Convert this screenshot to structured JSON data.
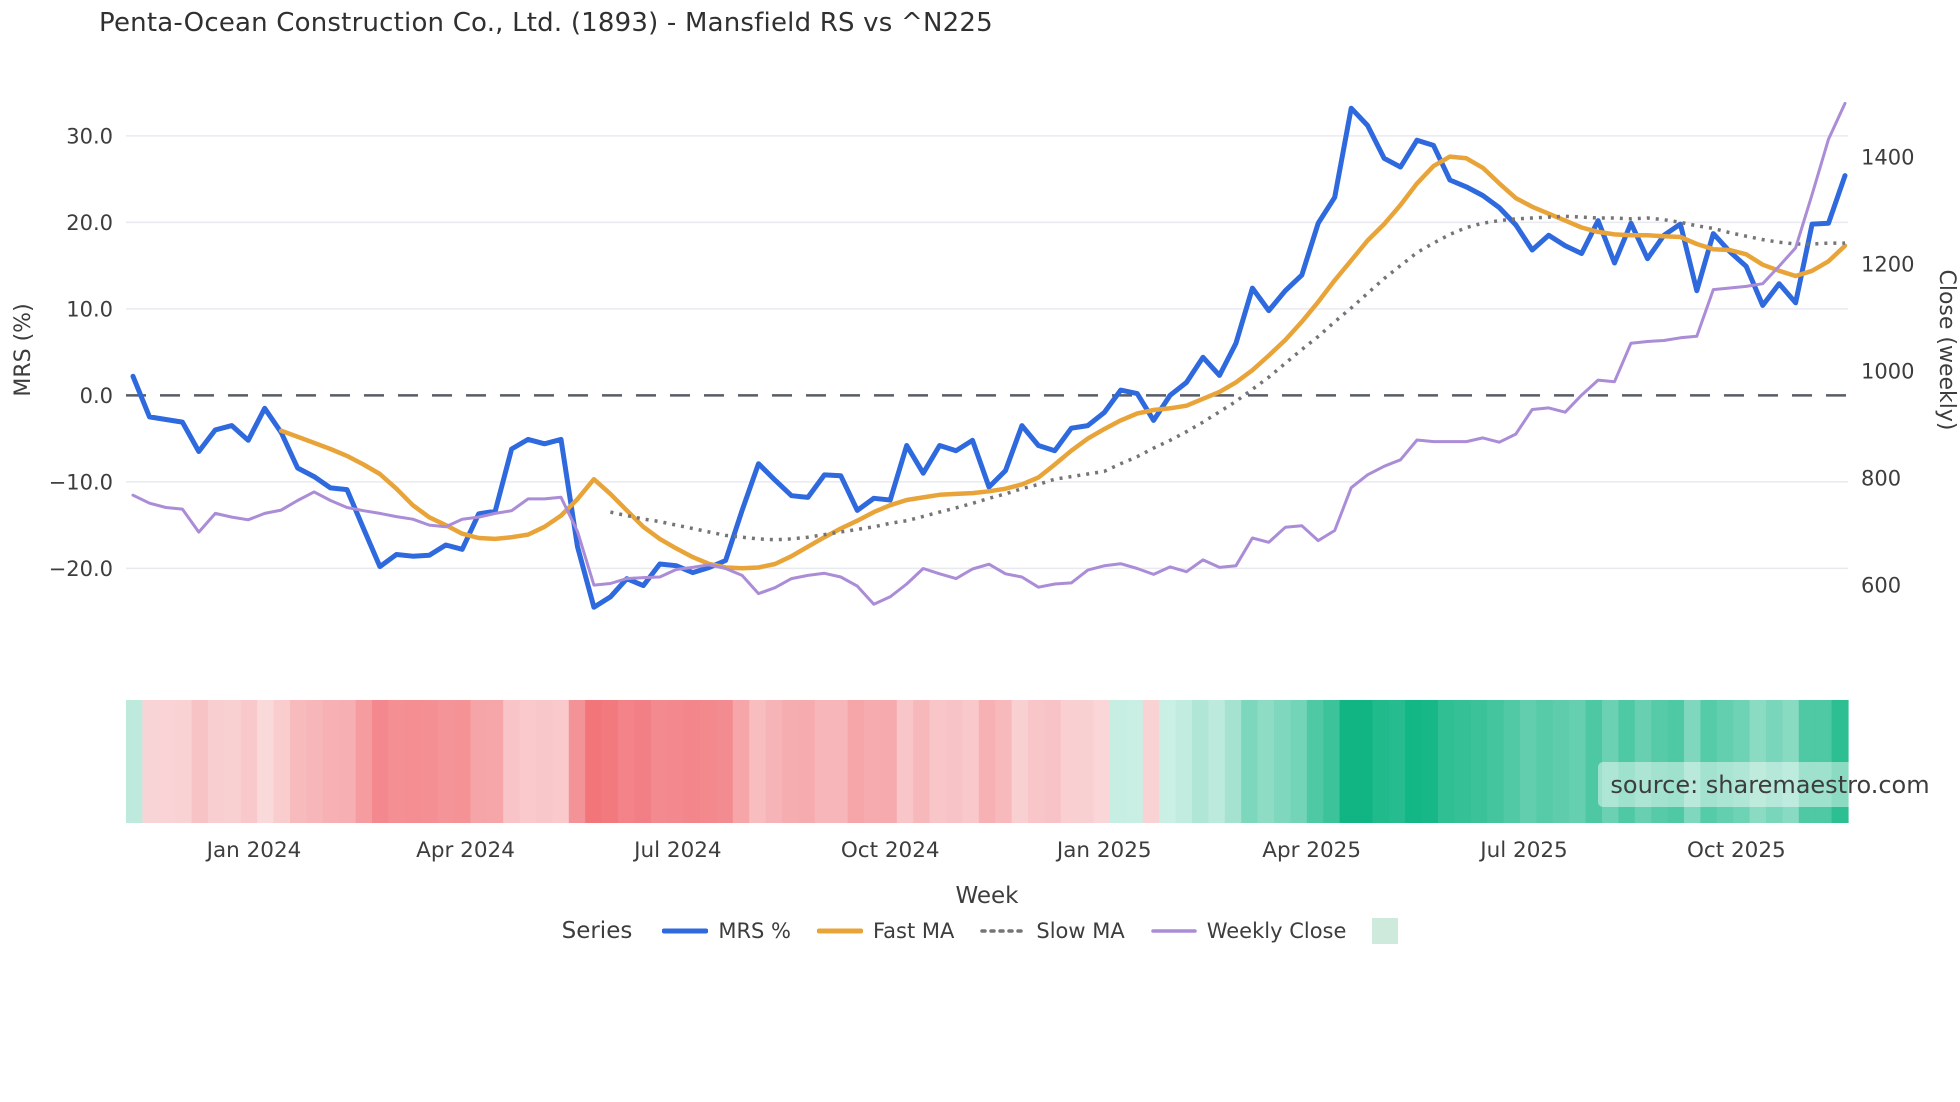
{
  "chart_data": {
    "type": "line",
    "title": "Penta-Ocean Construction Co., Ltd. (1893) - Mansfield RS vs ^N225",
    "xlabel": "Week",
    "ylabel_left": "MRS (%)",
    "ylabel_right": "Close (weekly)",
    "legend_title": "Series",
    "watermark": "source: sharemaestro.com",
    "n_weeks": 105,
    "x_ticks": [
      {
        "label": "Jan 2024",
        "week": 7.35
      },
      {
        "label": "Apr 2024",
        "week": 20.2
      },
      {
        "label": "Jul 2024",
        "week": 33.1
      },
      {
        "label": "Oct 2024",
        "week": 46.0
      },
      {
        "label": "Jan 2025",
        "week": 59.0
      },
      {
        "label": "Apr 2025",
        "week": 71.6
      },
      {
        "label": "Jul 2025",
        "week": 84.5
      },
      {
        "label": "Oct 2025",
        "week": 97.4
      }
    ],
    "left_axis": {
      "tick_labels": [
        "30.0",
        "20.0",
        "10.0",
        "0.0",
        "−10.0",
        "−20.0"
      ],
      "tick_values": [
        30,
        20,
        10,
        0,
        -10,
        -20
      ],
      "range": [
        -30.6,
        35.3
      ],
      "zero_line": 0
    },
    "right_axis": {
      "tick_labels": [
        "1400",
        "1200",
        "1000",
        "800",
        "600"
      ],
      "tick_values": [
        1400,
        1200,
        1000,
        800,
        600
      ],
      "range": [
        460,
        1525
      ]
    },
    "series": [
      {
        "name": "MRS %",
        "axis": "left",
        "color": "#2f69de",
        "style": "solid",
        "width": 5,
        "values": [
          2.2,
          -2.5,
          -2.8,
          -3.1,
          -6.5,
          -4.0,
          -3.5,
          -5.2,
          -1.5,
          -4.3,
          -8.4,
          -9.4,
          -10.7,
          -10.9,
          -15.4,
          -19.8,
          -18.4,
          -18.6,
          -18.5,
          -17.3,
          -17.8,
          -13.7,
          -13.4,
          -6.2,
          -5.1,
          -5.6,
          -5.1,
          -17.5,
          -24.5,
          -23.3,
          -21.2,
          -22.0,
          -19.5,
          -19.7,
          -20.5,
          -19.9,
          -19.1,
          -13.3,
          -7.9,
          -9.8,
          -11.6,
          -11.8,
          -9.2,
          -9.3,
          -13.3,
          -11.9,
          -12.1,
          -5.8,
          -9.0,
          -5.8,
          -6.4,
          -5.2,
          -10.6,
          -8.7,
          -3.5,
          -5.8,
          -6.4,
          -3.8,
          -3.5,
          -2.0,
          0.6,
          0.2,
          -2.9,
          0.0,
          1.5,
          4.4,
          2.3,
          6.0,
          12.4,
          9.8,
          12.1,
          13.9,
          19.9,
          22.9,
          33.2,
          31.2,
          27.4,
          26.4,
          29.5,
          28.9,
          24.9,
          24.1,
          23.1,
          21.7,
          19.7,
          16.8,
          18.5,
          17.3,
          16.4,
          20.2,
          15.3,
          19.9,
          15.8,
          18.5,
          19.8,
          12.1,
          18.7,
          16.6,
          14.9,
          10.4,
          12.9,
          10.7,
          19.8,
          19.9,
          25.4
        ]
      },
      {
        "name": "Fast MA",
        "axis": "left",
        "color": "#e9a439",
        "style": "solid",
        "width": 4.5,
        "values": [
          null,
          null,
          null,
          null,
          null,
          null,
          null,
          null,
          null,
          -4.1,
          -4.8,
          -5.5,
          -6.2,
          -7.0,
          -8.0,
          -9.1,
          -10.8,
          -12.7,
          -14.1,
          -15.0,
          -16.0,
          -16.5,
          -16.6,
          -16.4,
          -16.1,
          -15.2,
          -13.9,
          -12.0,
          -9.7,
          -11.4,
          -13.3,
          -15.2,
          -16.6,
          -17.7,
          -18.7,
          -19.5,
          -19.9,
          -20.0,
          -19.9,
          -19.5,
          -18.6,
          -17.5,
          -16.4,
          -15.4,
          -14.5,
          -13.5,
          -12.7,
          -12.1,
          -11.8,
          -11.5,
          -11.4,
          -11.3,
          -11.1,
          -10.8,
          -10.3,
          -9.5,
          -8.0,
          -6.4,
          -5.0,
          -3.9,
          -2.9,
          -2.1,
          -1.7,
          -1.5,
          -1.2,
          -0.4,
          0.4,
          1.5,
          2.9,
          4.6,
          6.4,
          8.5,
          10.8,
          13.3,
          15.6,
          17.9,
          19.8,
          22.0,
          24.5,
          26.5,
          27.6,
          27.4,
          26.3,
          24.5,
          22.8,
          21.8,
          21.0,
          20.2,
          19.4,
          18.9,
          18.6,
          18.5,
          18.5,
          18.4,
          18.3,
          17.5,
          16.9,
          16.8,
          16.3,
          15.1,
          14.4,
          13.8,
          14.4,
          15.5,
          17.3
        ]
      },
      {
        "name": "Slow MA",
        "axis": "left",
        "color": "#757575",
        "style": "dotted",
        "width": 3.5,
        "values": [
          null,
          null,
          null,
          null,
          null,
          null,
          null,
          null,
          null,
          null,
          null,
          null,
          null,
          null,
          null,
          null,
          null,
          null,
          null,
          null,
          null,
          null,
          null,
          null,
          null,
          null,
          null,
          null,
          null,
          -13.5,
          -13.9,
          -14.3,
          -14.6,
          -15.0,
          -15.4,
          -15.8,
          -16.2,
          -16.4,
          -16.6,
          -16.7,
          -16.6,
          -16.4,
          -16.1,
          -15.8,
          -15.5,
          -15.2,
          -14.8,
          -14.5,
          -14.0,
          -13.5,
          -13.0,
          -12.5,
          -11.9,
          -11.4,
          -10.8,
          -10.3,
          -9.7,
          -9.4,
          -9.1,
          -8.8,
          -7.9,
          -7.1,
          -6.1,
          -5.2,
          -4.2,
          -3.1,
          -1.9,
          -0.7,
          0.7,
          2.1,
          3.7,
          5.3,
          6.8,
          8.5,
          10.1,
          11.8,
          13.5,
          15.0,
          16.5,
          17.6,
          18.6,
          19.4,
          19.9,
          20.2,
          20.4,
          20.5,
          20.6,
          20.7,
          20.6,
          20.5,
          20.5,
          20.4,
          20.5,
          20.3,
          20.0,
          19.6,
          19.3,
          18.8,
          18.4,
          18.0,
          17.7,
          17.5,
          17.5,
          17.6,
          17.6
        ]
      },
      {
        "name": "Weekly Close",
        "axis": "right",
        "color": "#aa8cd7",
        "style": "solid",
        "width": 3,
        "values": [
          768,
          753,
          745,
          742,
          699,
          734,
          727,
          722,
          734,
          740,
          758,
          774,
          758,
          745,
          739,
          734,
          728,
          723,
          712,
          709,
          723,
          727,
          734,
          739,
          761,
          761,
          764,
          700,
          600,
          603,
          612,
          614,
          615,
          629,
          633,
          638,
          631,
          618,
          584,
          595,
          612,
          618,
          622,
          615,
          598,
          564,
          578,
          602,
          631,
          621,
          612,
          630,
          639,
          621,
          615,
          596,
          602,
          604,
          628,
          636,
          640,
          631,
          620,
          634,
          625,
          647,
          633,
          636,
          688,
          680,
          708,
          711,
          683,
          702,
          782,
          806,
          822,
          834,
          871,
          868,
          868,
          868,
          875,
          867,
          882,
          928,
          931,
          923,
          955,
          983,
          980,
          1052,
          1055,
          1057,
          1062,
          1065,
          1152,
          1155,
          1158,
          1163,
          1196,
          1230,
          1330,
          1433,
          1500
        ]
      }
    ],
    "heatmap": {
      "based_on": "MRS %",
      "positive_max": 30,
      "negative_max": 26,
      "positive_color": "#10b583",
      "negative_color": "#f1777c",
      "legend_swatch_color": "#cdeadd"
    },
    "style": {
      "grid_color": "#e9e9f0",
      "zero_line_color": "#575d66",
      "text_color": "#3d3d3d",
      "watermark_text_color": "#878f96"
    }
  }
}
